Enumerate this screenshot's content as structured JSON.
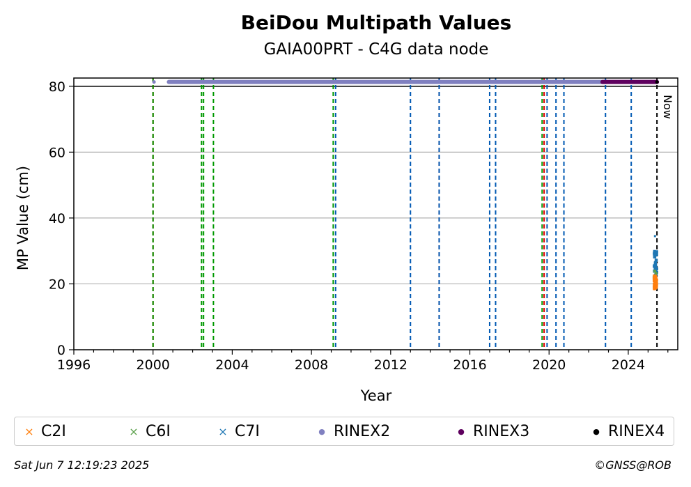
{
  "chart_data": {
    "type": "scatter",
    "title": "BeiDou Multipath Values",
    "subtitle": "GAIA00PRT - C4G data node",
    "xlabel": "Year",
    "ylabel": "MP Value (cm)",
    "xlim": [
      1996,
      2026.5
    ],
    "ylim": [
      0,
      82.5
    ],
    "xticks": [
      1996,
      2000,
      2004,
      2008,
      2012,
      2016,
      2020,
      2024
    ],
    "yticks": [
      0,
      20,
      40,
      60,
      80
    ],
    "grid": "y",
    "reference_line_y": 80,
    "now_label": "Now",
    "now_x": 2025.45,
    "series": [
      {
        "name": "C2I",
        "marker": "x",
        "color": "#ff7f0e",
        "x_range": [
          2025.3,
          2025.45
        ],
        "y_range": [
          18.5,
          22.5
        ]
      },
      {
        "name": "C6I",
        "marker": "x",
        "color": "#5aa04a",
        "x_range": [
          2025.3,
          2025.45
        ],
        "y_range": [
          21,
          24
        ]
      },
      {
        "name": "C7I",
        "marker": "x",
        "color": "#1f77b4",
        "x_range": [
          2025.3,
          2025.45
        ],
        "y_range": [
          22,
          30
        ],
        "outlier": [
          2025.35,
          34.5
        ]
      },
      {
        "name": "RINEX2",
        "marker": "o",
        "color": "#8080c0",
        "x_range": [
          2000.8,
          2022.9
        ],
        "y": 81.3,
        "extra_point": [
          2000.05,
          81.3
        ]
      },
      {
        "name": "RINEX3",
        "marker": "o",
        "color": "#5e005e",
        "x_range": [
          2022.7,
          2025.45
        ],
        "y": 81.3
      },
      {
        "name": "RINEX4",
        "marker": "o",
        "color": "#000000",
        "x_range": [
          2025.4,
          2025.45
        ],
        "y": 81.3
      }
    ],
    "event_lines": [
      {
        "x": 2000.0,
        "color": "#dd0000",
        "style": "dash"
      },
      {
        "x": 2000.0,
        "color": "#009900",
        "style": "dash"
      },
      {
        "x": 2002.45,
        "color": "#009900",
        "style": "dash"
      },
      {
        "x": 2002.55,
        "color": "#009900",
        "style": "dash"
      },
      {
        "x": 2003.05,
        "color": "#009900",
        "style": "dash"
      },
      {
        "x": 2009.1,
        "color": "#009900",
        "style": "dash"
      },
      {
        "x": 2009.22,
        "color": "#0059b3",
        "style": "dash"
      },
      {
        "x": 2013.0,
        "color": "#0059b3",
        "style": "dash"
      },
      {
        "x": 2014.45,
        "color": "#dd0000",
        "style": "dash"
      },
      {
        "x": 2014.45,
        "color": "#0059b3",
        "style": "dash"
      },
      {
        "x": 2017.0,
        "color": "#0059b3",
        "style": "dash"
      },
      {
        "x": 2017.3,
        "color": "#0059b3",
        "style": "dash"
      },
      {
        "x": 2019.65,
        "color": "#009900",
        "style": "dash"
      },
      {
        "x": 2019.75,
        "color": "#dd0000",
        "style": "dash"
      },
      {
        "x": 2019.9,
        "color": "#0059b3",
        "style": "dash"
      },
      {
        "x": 2020.35,
        "color": "#0059b3",
        "style": "dash"
      },
      {
        "x": 2020.75,
        "color": "#0059b3",
        "style": "dash"
      },
      {
        "x": 2022.85,
        "color": "#0059b3",
        "style": "dash"
      },
      {
        "x": 2024.15,
        "color": "#0059b3",
        "style": "dash"
      },
      {
        "x": 2025.45,
        "color": "#000000",
        "style": "dash"
      }
    ]
  },
  "legend": [
    {
      "label": "C2I",
      "marker": "×",
      "color": "#ff7f0e"
    },
    {
      "label": "C6I",
      "marker": "×",
      "color": "#5aa04a"
    },
    {
      "label": "C7I",
      "marker": "×",
      "color": "#1f77b4"
    },
    {
      "label": "RINEX2",
      "marker": "●",
      "color": "#8080c0"
    },
    {
      "label": "RINEX3",
      "marker": "●",
      "color": "#5e005e"
    },
    {
      "label": "RINEX4",
      "marker": "●",
      "color": "#000000"
    }
  ],
  "footer": {
    "timestamp": "Sat Jun  7 12:19:23 2025",
    "copyright": "©GNSS@ROB"
  }
}
